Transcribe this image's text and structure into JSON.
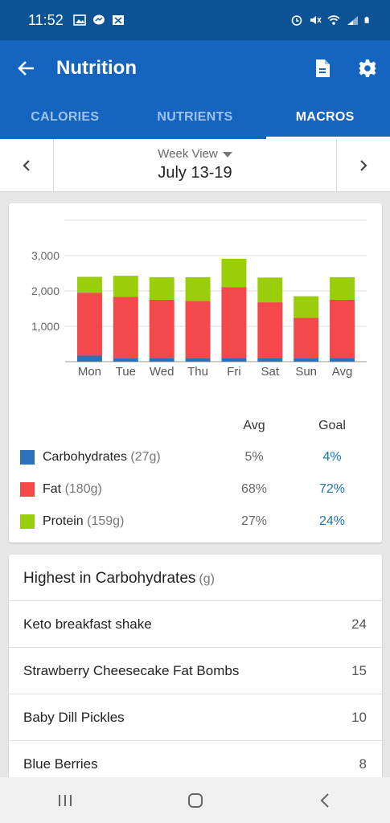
{
  "status": {
    "time": "11:52",
    "icons": [
      "gallery-icon",
      "messenger-icon",
      "image-x-icon",
      "alarm-icon",
      "mute-icon",
      "wifi-icon",
      "signal-icon",
      "battery-icon"
    ]
  },
  "appbar": {
    "title": "Nutrition",
    "icons": [
      "back-arrow-icon",
      "export-file-icon",
      "gear-icon"
    ]
  },
  "tabs": [
    {
      "label": "CALORIES",
      "active": false
    },
    {
      "label": "NUTRIENTS",
      "active": false
    },
    {
      "label": "MACROS",
      "active": true
    }
  ],
  "week": {
    "view_label": "Week View",
    "range": "July 13-19"
  },
  "colors": {
    "carbohydrates": "#2c72b8",
    "fat": "#f5484a",
    "protein": "#9bce0a",
    "accent": "#1565c0",
    "goal_text": "#1874bb"
  },
  "chart_data": {
    "type": "bar",
    "stacked": true,
    "categories": [
      "Mon",
      "Tue",
      "Wed",
      "Thu",
      "Fri",
      "Sat",
      "Sun",
      "Avg"
    ],
    "series": [
      {
        "name": "Carbohydrates",
        "color": "#2c72b8",
        "values": [
          170,
          90,
          110,
          100,
          110,
          100,
          90,
          110
        ]
      },
      {
        "name": "Fat",
        "color": "#f5484a",
        "values": [
          1780,
          1740,
          1640,
          1620,
          2000,
          1580,
          1150,
          1640
        ]
      },
      {
        "name": "Protein",
        "color": "#9bce0a",
        "values": [
          450,
          600,
          640,
          670,
          800,
          700,
          610,
          640
        ]
      }
    ],
    "yticks": [
      "1,000",
      "2,000",
      "3,000"
    ],
    "ylim": [
      0,
      4000
    ],
    "grid": true
  },
  "legend": {
    "avg_header": "Avg",
    "goal_header": "Goal",
    "rows": [
      {
        "name": "Carbohydrates",
        "grams": "(27g)",
        "avg": "5%",
        "goal": "4%"
      },
      {
        "name": "Fat",
        "grams": "(180g)",
        "avg": "68%",
        "goal": "72%"
      },
      {
        "name": "Protein",
        "grams": "(159g)",
        "avg": "27%",
        "goal": "24%"
      }
    ]
  },
  "highest": {
    "title": "Highest in Carbohydrates",
    "unit": "(g)",
    "items": [
      {
        "name": "Keto breakfast shake",
        "value": "24"
      },
      {
        "name": "Strawberry Cheesecake Fat Bombs",
        "value": "15"
      },
      {
        "name": "Baby Dill Pickles",
        "value": "10"
      },
      {
        "name": "Blue Berries",
        "value": "8"
      }
    ]
  },
  "navbar": {
    "icons": [
      "recent-apps-icon",
      "home-icon",
      "nav-back-icon"
    ]
  }
}
